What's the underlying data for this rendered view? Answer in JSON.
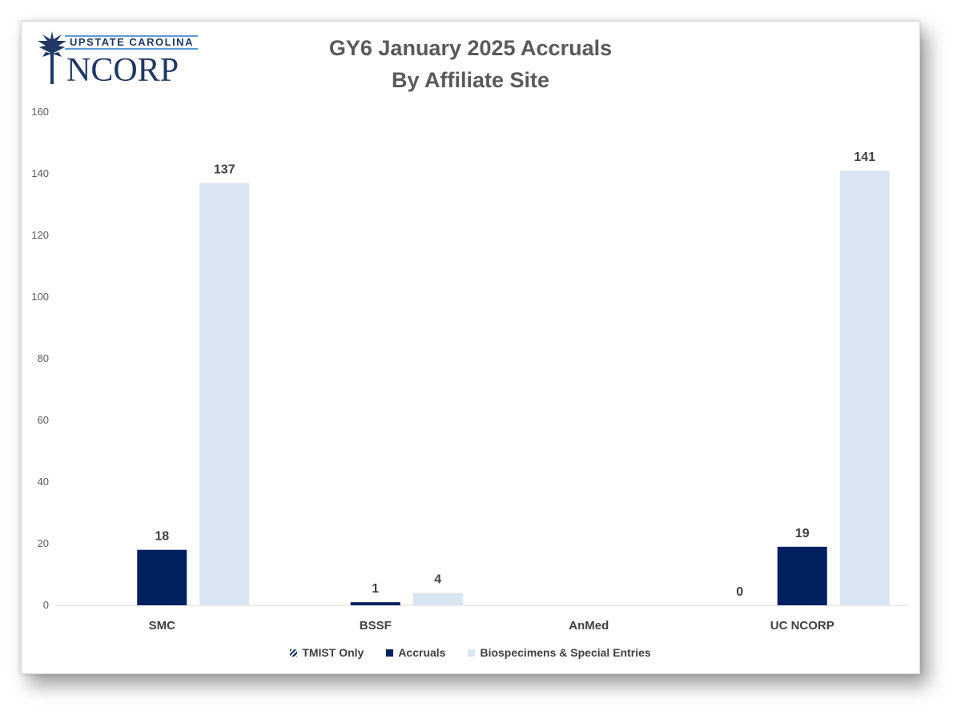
{
  "logo": {
    "top_text": "UPSTATE CAROLINA",
    "main_text": "NCORP",
    "icon": "palmetto-tree-icon"
  },
  "chart_data": {
    "type": "bar",
    "title": "GY6 January 2025 Accruals",
    "subtitle": "By Affiliate Site",
    "categories": [
      "SMC",
      "BSSF",
      "AnMed",
      "UC NCORP"
    ],
    "series": [
      {
        "name": "TMIST Only",
        "values": [
          null,
          null,
          null,
          0
        ],
        "color": "#002060",
        "pattern": "hatch"
      },
      {
        "name": "Accruals",
        "values": [
          18,
          1,
          null,
          19
        ],
        "color": "#002060"
      },
      {
        "name": "Biospecimens & Special Entries",
        "values": [
          137,
          4,
          null,
          141
        ],
        "color": "#dae5f2"
      }
    ],
    "ylim": [
      0,
      160
    ],
    "yticks": [
      0,
      20,
      40,
      60,
      80,
      100,
      120,
      140,
      160
    ],
    "grid": false,
    "legend": "bottom"
  }
}
